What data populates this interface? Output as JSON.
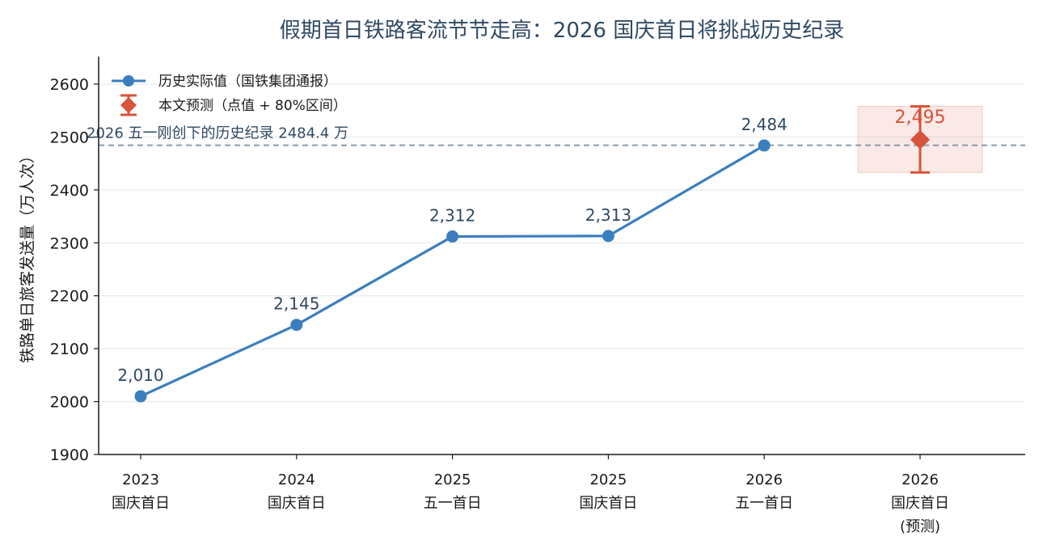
{
  "chart_data": {
    "type": "line",
    "title": "假期首日铁路客流节节走高：2026 国庆首日将挑战历史纪录",
    "ylabel": "铁路单日旅客发送量（万人次）",
    "xlabel": "",
    "ylim": [
      1900,
      2650
    ],
    "yticks": [
      1900,
      2000,
      2100,
      2200,
      2300,
      2400,
      2500,
      2600
    ],
    "grid": "horizontal",
    "legend_position": "top-left",
    "categories": [
      [
        "2023",
        "国庆首日"
      ],
      [
        "2024",
        "国庆首日"
      ],
      [
        "2025",
        "五一首日"
      ],
      [
        "2025",
        "国庆首日"
      ],
      [
        "2026",
        "五一首日"
      ],
      [
        "2026",
        "国庆首日",
        "(预测)"
      ]
    ],
    "series": [
      {
        "name": "历史实际值（国铁集团通报）",
        "color": "#3a7ebf",
        "values": [
          2010,
          2145,
          2312,
          2313,
          2484,
          null
        ],
        "labels": [
          "2,010",
          "2,145",
          "2,312",
          "2,313",
          "2,484",
          null
        ]
      },
      {
        "name": "本文预测（点值 + 80%区间）",
        "color": "#d9533a",
        "values": [
          null,
          null,
          null,
          null,
          null,
          2495
        ],
        "interval": [
          2433,
          2558
        ],
        "labels": [
          null,
          null,
          null,
          null,
          null,
          "2,495"
        ]
      }
    ],
    "reference_line": {
      "value": 2484.4,
      "label": "2026 五一刚创下的历史纪录 2484.4 万",
      "color": "#8a9aa8"
    }
  }
}
